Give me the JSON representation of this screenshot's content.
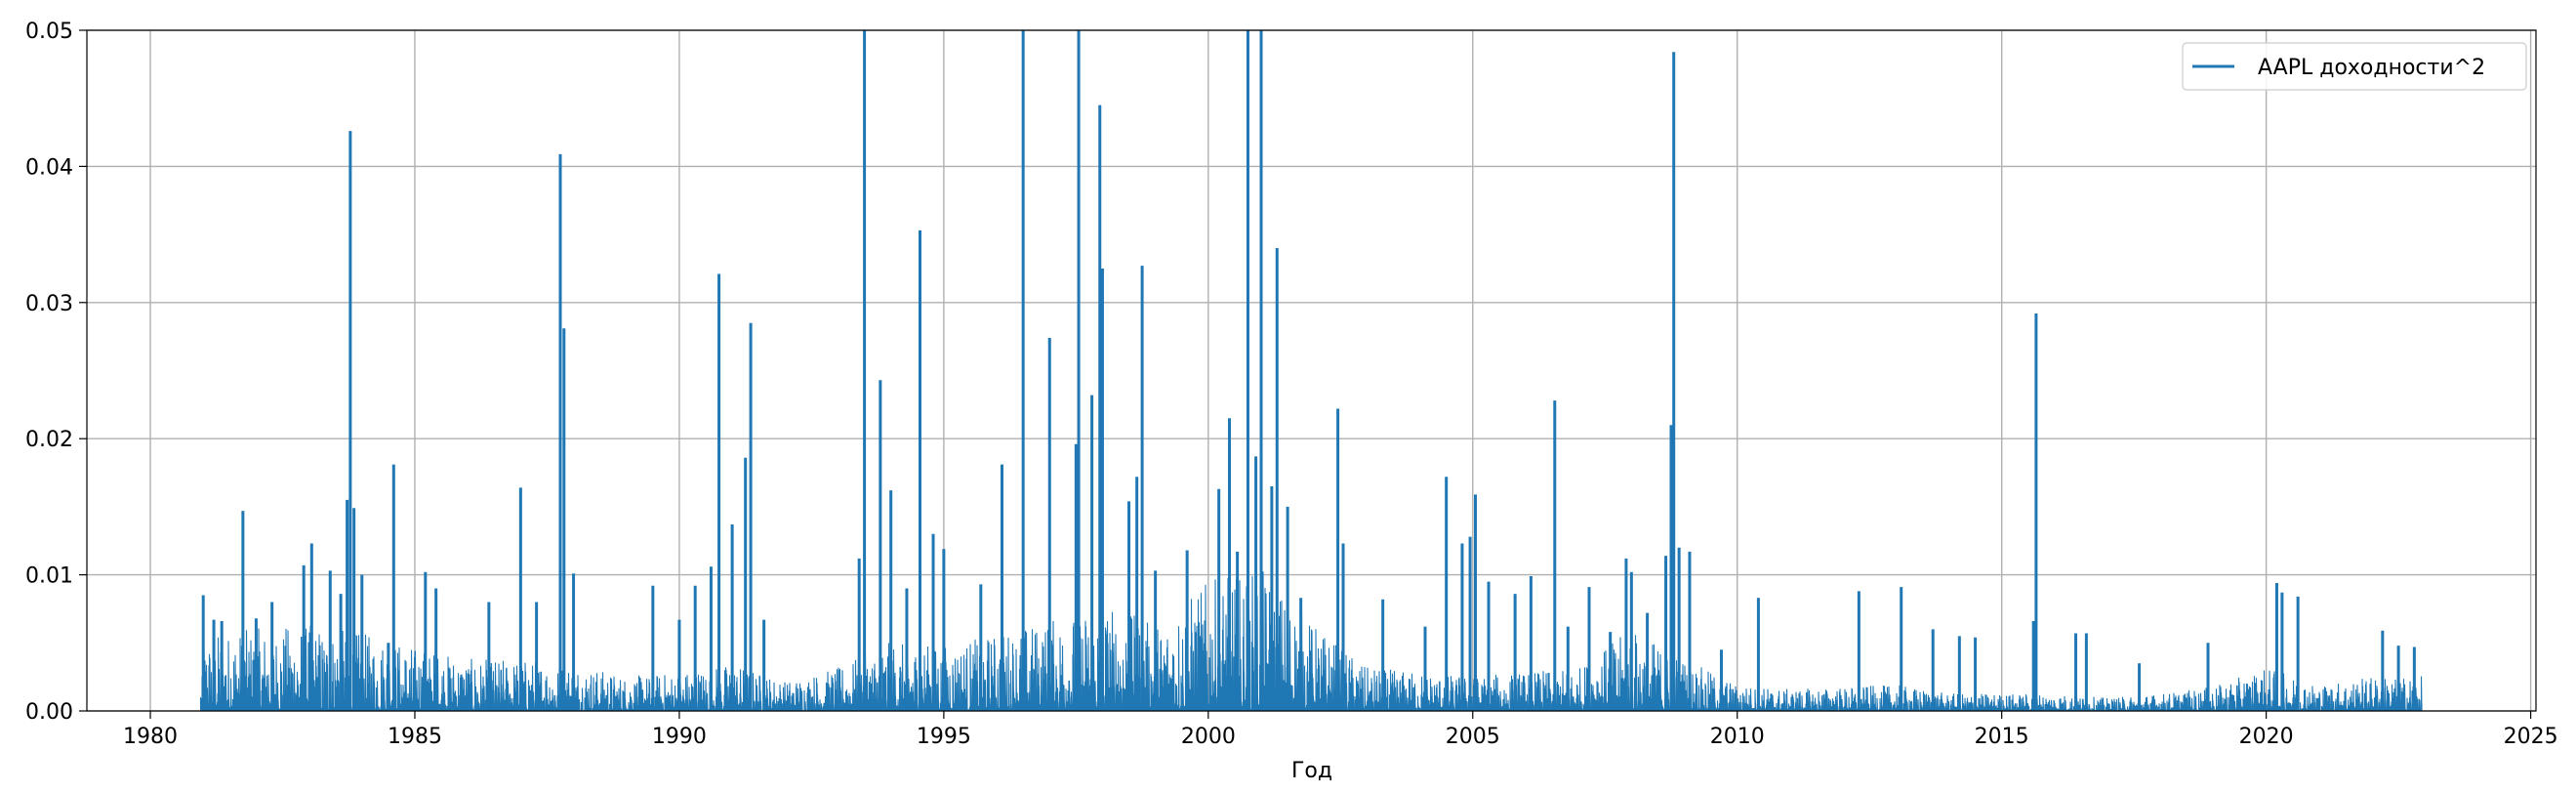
{
  "chart_data": {
    "type": "line",
    "title": "",
    "xlabel": "Год",
    "ylabel": "",
    "xlim": [
      1978.8,
      2025.1
    ],
    "ylim": [
      0,
      0.05
    ],
    "x_ticks": [
      1980,
      1985,
      1990,
      1995,
      2000,
      2005,
      2010,
      2015,
      2020,
      2025
    ],
    "y_ticks": [
      0.0,
      0.01,
      0.02,
      0.03,
      0.04,
      0.05
    ],
    "y_tick_labels": [
      "0.00",
      "0.01",
      "0.02",
      "0.03",
      "0.04",
      "0.05"
    ],
    "grid": true,
    "legend_position": "top-right",
    "series": [
      {
        "name": "AAPL доходности^2",
        "color": "#1f77b4",
        "x_range": [
          1980.95,
          2022.95
        ],
        "baseline_envelope": [
          [
            1981.0,
            0.0035
          ],
          [
            1982.0,
            0.0038
          ],
          [
            1983.0,
            0.004
          ],
          [
            1984.0,
            0.0036
          ],
          [
            1985.0,
            0.003
          ],
          [
            1986.0,
            0.0024
          ],
          [
            1987.0,
            0.0024
          ],
          [
            1988.0,
            0.0022
          ],
          [
            1989.0,
            0.0016
          ],
          [
            1990.0,
            0.0018
          ],
          [
            1991.0,
            0.0022
          ],
          [
            1992.0,
            0.0014
          ],
          [
            1993.0,
            0.002
          ],
          [
            1994.0,
            0.0032
          ],
          [
            1995.0,
            0.003
          ],
          [
            1996.0,
            0.0036
          ],
          [
            1997.0,
            0.0042
          ],
          [
            1998.0,
            0.005
          ],
          [
            1999.0,
            0.004
          ],
          [
            2000.0,
            0.006
          ],
          [
            2001.0,
            0.0065
          ],
          [
            2002.0,
            0.004
          ],
          [
            2003.0,
            0.002
          ],
          [
            2004.0,
            0.0018
          ],
          [
            2005.0,
            0.0016
          ],
          [
            2006.0,
            0.0018
          ],
          [
            2007.0,
            0.002
          ],
          [
            2008.0,
            0.0038
          ],
          [
            2009.0,
            0.0024
          ],
          [
            2010.0,
            0.0012
          ],
          [
            2011.0,
            0.001
          ],
          [
            2012.0,
            0.0011
          ],
          [
            2013.0,
            0.0012
          ],
          [
            2014.0,
            0.0008
          ],
          [
            2015.0,
            0.0008
          ],
          [
            2016.0,
            0.0008
          ],
          [
            2017.0,
            0.0006
          ],
          [
            2018.0,
            0.0008
          ],
          [
            2019.0,
            0.0011
          ],
          [
            2020.0,
            0.002
          ],
          [
            2021.0,
            0.0012
          ],
          [
            2022.0,
            0.0016
          ],
          [
            2022.95,
            0.0016
          ]
        ],
        "spikes": [
          [
            1981.0,
            0.0085
          ],
          [
            1981.2,
            0.0067
          ],
          [
            1981.35,
            0.0066
          ],
          [
            1981.75,
            0.0147
          ],
          [
            1982.0,
            0.0068
          ],
          [
            1982.3,
            0.008
          ],
          [
            1982.9,
            0.0107
          ],
          [
            1983.05,
            0.0123
          ],
          [
            1983.4,
            0.0103
          ],
          [
            1983.6,
            0.0086
          ],
          [
            1983.72,
            0.0155
          ],
          [
            1983.78,
            0.0426
          ],
          [
            1983.85,
            0.0149
          ],
          [
            1984.0,
            0.01
          ],
          [
            1984.5,
            0.005
          ],
          [
            1984.6,
            0.0181
          ],
          [
            1985.2,
            0.0102
          ],
          [
            1985.4,
            0.009
          ],
          [
            1986.4,
            0.008
          ],
          [
            1987.0,
            0.0164
          ],
          [
            1987.3,
            0.008
          ],
          [
            1987.75,
            0.0409
          ],
          [
            1987.82,
            0.0281
          ],
          [
            1988.0,
            0.0101
          ],
          [
            1989.5,
            0.0092
          ],
          [
            1990.0,
            0.0067
          ],
          [
            1990.3,
            0.0092
          ],
          [
            1990.6,
            0.0106
          ],
          [
            1990.75,
            0.0321
          ],
          [
            1991.0,
            0.0137
          ],
          [
            1991.25,
            0.0186
          ],
          [
            1991.35,
            0.0285
          ],
          [
            1991.6,
            0.0067
          ],
          [
            1993.4,
            0.0112
          ],
          [
            1993.5,
            0.05
          ],
          [
            1993.8,
            0.0243
          ],
          [
            1994.0,
            0.0162
          ],
          [
            1994.3,
            0.009
          ],
          [
            1994.55,
            0.0353
          ],
          [
            1994.8,
            0.013
          ],
          [
            1995.0,
            0.0119
          ],
          [
            1995.7,
            0.0093
          ],
          [
            1996.1,
            0.0181
          ],
          [
            1996.5,
            0.05
          ],
          [
            1997.0,
            0.0274
          ],
          [
            1997.5,
            0.0196
          ],
          [
            1997.55,
            0.05
          ],
          [
            1997.8,
            0.0232
          ],
          [
            1997.95,
            0.0445
          ],
          [
            1998.0,
            0.0325
          ],
          [
            1998.5,
            0.0154
          ],
          [
            1998.65,
            0.0172
          ],
          [
            1998.75,
            0.0327
          ],
          [
            1999.0,
            0.0103
          ],
          [
            1999.6,
            0.0118
          ],
          [
            2000.2,
            0.0163
          ],
          [
            2000.4,
            0.0215
          ],
          [
            2000.55,
            0.0117
          ],
          [
            2000.75,
            0.05
          ],
          [
            2000.9,
            0.0187
          ],
          [
            2001.0,
            0.05
          ],
          [
            2001.2,
            0.0165
          ],
          [
            2001.3,
            0.034
          ],
          [
            2001.5,
            0.015
          ],
          [
            2001.75,
            0.0083
          ],
          [
            2002.45,
            0.0222
          ],
          [
            2002.55,
            0.0123
          ],
          [
            2003.3,
            0.0082
          ],
          [
            2004.1,
            0.0062
          ],
          [
            2004.5,
            0.0172
          ],
          [
            2004.8,
            0.0123
          ],
          [
            2004.95,
            0.0128
          ],
          [
            2005.05,
            0.0159
          ],
          [
            2005.3,
            0.0095
          ],
          [
            2005.8,
            0.0086
          ],
          [
            2006.1,
            0.0099
          ],
          [
            2006.55,
            0.0228
          ],
          [
            2006.8,
            0.0062
          ],
          [
            2007.2,
            0.0091
          ],
          [
            2007.6,
            0.0058
          ],
          [
            2007.9,
            0.0112
          ],
          [
            2008.0,
            0.0102
          ],
          [
            2008.3,
            0.0072
          ],
          [
            2008.65,
            0.0114
          ],
          [
            2008.75,
            0.021
          ],
          [
            2008.8,
            0.0484
          ],
          [
            2008.9,
            0.012
          ],
          [
            2009.1,
            0.0117
          ],
          [
            2009.7,
            0.0045
          ],
          [
            2010.4,
            0.0083
          ],
          [
            2012.3,
            0.0088
          ],
          [
            2013.1,
            0.0091
          ],
          [
            2013.7,
            0.006
          ],
          [
            2014.2,
            0.0055
          ],
          [
            2014.5,
            0.0054
          ],
          [
            2015.6,
            0.0066
          ],
          [
            2015.65,
            0.0292
          ],
          [
            2016.4,
            0.0057
          ],
          [
            2016.6,
            0.0057
          ],
          [
            2017.6,
            0.0035
          ],
          [
            2018.9,
            0.005
          ],
          [
            2020.2,
            0.0094
          ],
          [
            2020.3,
            0.0087
          ],
          [
            2020.6,
            0.0084
          ],
          [
            2022.2,
            0.0059
          ],
          [
            2022.5,
            0.0048
          ],
          [
            2022.8,
            0.0047
          ]
        ]
      }
    ]
  }
}
